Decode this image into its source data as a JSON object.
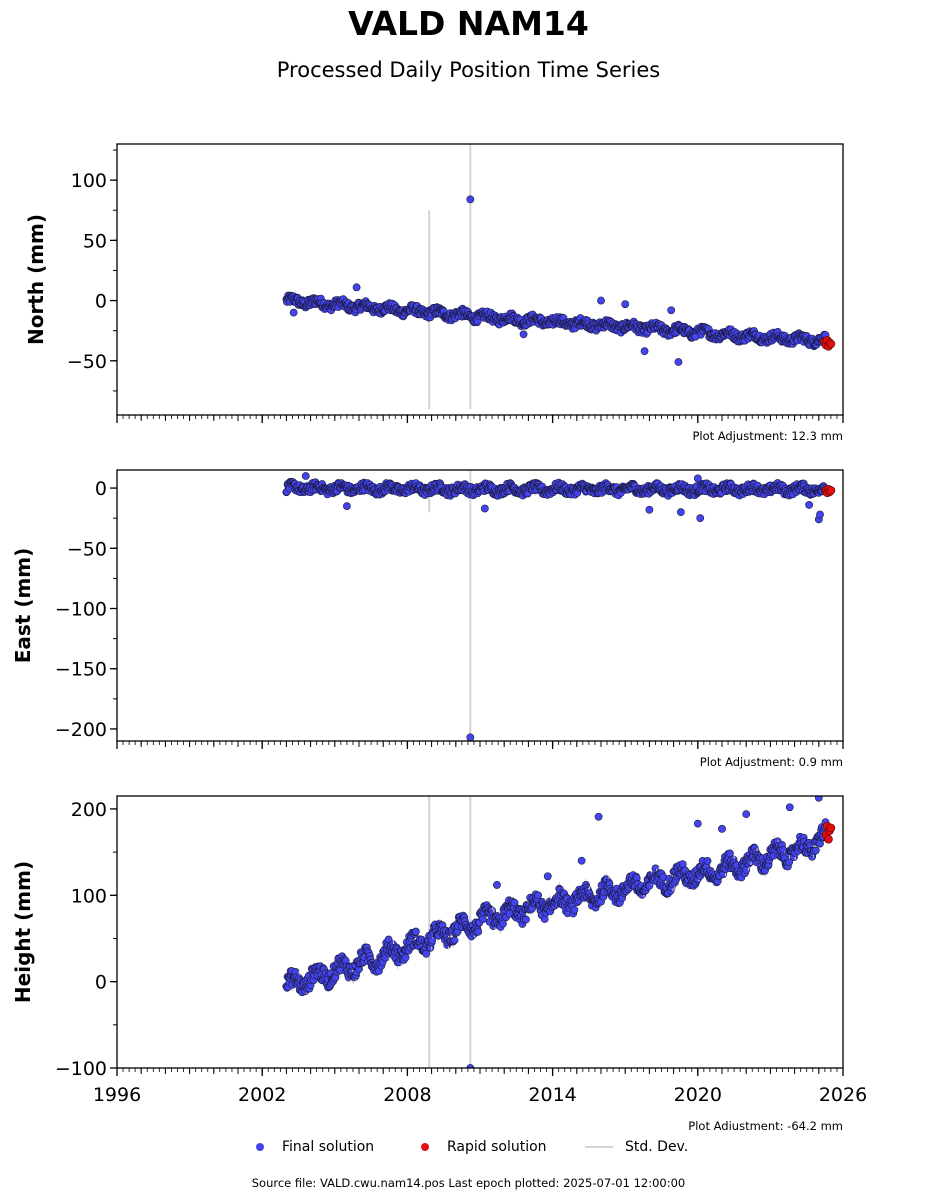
{
  "title": "VALD NAM14",
  "subtitle": "Processed Daily Position Time Series",
  "legend": {
    "final": "Final solution",
    "rapid": "Rapid solution",
    "std": "Std. Dev."
  },
  "source": "Source file: VALD.cwu.nam14.pos  Last epoch plotted: 2025-07-01 12:00:00",
  "colors": {
    "final": "#4444ee",
    "final_edge": "#1a1a3a",
    "rapid": "#e01010",
    "std": "#d3d3d3"
  },
  "chart_data": [
    {
      "type": "scatter",
      "ylabel": "North (mm)",
      "adjustment": "Plot Adjustment: 12.3 mm",
      "xlim": [
        1996,
        2026
      ],
      "ylim": [
        -95,
        130
      ],
      "yticks": [
        100,
        50,
        0,
        -50
      ],
      "ytick_labels": [
        "100",
        "50",
        "0",
        "−50"
      ],
      "xticks": [
        1996,
        2002,
        2008,
        2014,
        2020,
        2026
      ],
      "xtick_labels": [],
      "trend": [
        [
          2003.0,
          0
        ],
        [
          2006.0,
          -5
        ],
        [
          2009.0,
          -10
        ],
        [
          2012.0,
          -15
        ],
        [
          2015.0,
          -19
        ],
        [
          2018.0,
          -23
        ],
        [
          2021.0,
          -28
        ],
        [
          2024.0,
          -32
        ],
        [
          2025.3,
          -33
        ]
      ],
      "outliers": [
        [
          2010.6,
          84
        ],
        [
          2003.3,
          -10
        ],
        [
          2005.9,
          11
        ],
        [
          2016.0,
          0
        ],
        [
          2017.0,
          -3
        ],
        [
          2018.9,
          -8
        ],
        [
          2019.2,
          -51
        ],
        [
          2017.8,
          -42
        ],
        [
          2019.9,
          -30
        ],
        [
          2012.8,
          -28
        ]
      ],
      "rapid": [
        [
          2025.25,
          -34
        ],
        [
          2025.3,
          -37
        ],
        [
          2025.35,
          -33
        ],
        [
          2025.4,
          -38
        ],
        [
          2025.45,
          -35
        ],
        [
          2025.5,
          -36
        ]
      ],
      "std_lines": [
        [
          2008.9,
          -90,
          75
        ],
        [
          2010.6,
          -90,
          130
        ]
      ]
    },
    {
      "type": "scatter",
      "ylabel": "East (mm)",
      "adjustment": "Plot Adjustment: 0.9 mm",
      "xlim": [
        1996,
        2026
      ],
      "ylim": [
        -210,
        15
      ],
      "yticks": [
        0,
        -50,
        -100,
        -150,
        -200
      ],
      "ytick_labels": [
        "0",
        "−50",
        "−100",
        "−150",
        "−200"
      ],
      "xticks": [
        1996,
        2002,
        2008,
        2014,
        2020,
        2026
      ],
      "xtick_labels": [],
      "trend": [
        [
          2003.0,
          0
        ],
        [
          2010.0,
          -1
        ],
        [
          2015.0,
          -1
        ],
        [
          2020.0,
          -1
        ],
        [
          2025.3,
          -1
        ]
      ],
      "outliers": [
        [
          2010.6,
          -207
        ],
        [
          2003.8,
          10
        ],
        [
          2005.5,
          -15
        ],
        [
          2011.2,
          -17
        ],
        [
          2018.0,
          -18
        ],
        [
          2019.3,
          -20
        ],
        [
          2020.1,
          -25
        ],
        [
          2025.0,
          -26
        ],
        [
          2025.05,
          -22
        ],
        [
          2020.0,
          8
        ],
        [
          2024.6,
          -14
        ]
      ],
      "rapid": [
        [
          2025.3,
          -2
        ],
        [
          2025.35,
          -4
        ],
        [
          2025.4,
          -1
        ],
        [
          2025.45,
          -3
        ],
        [
          2025.5,
          -2
        ]
      ],
      "std_lines": [
        [
          2010.6,
          -207,
          15
        ],
        [
          2008.9,
          -20,
          5
        ]
      ]
    },
    {
      "type": "scatter",
      "ylabel": "Height (mm)",
      "adjustment": "Plot Adjustment: -64.2 mm",
      "xlim": [
        1996,
        2026
      ],
      "ylim": [
        -100,
        215
      ],
      "yticks": [
        200,
        100,
        0,
        -100
      ],
      "ytick_labels": [
        "200",
        "100",
        "0",
        "−100"
      ],
      "xticks": [
        1996,
        2002,
        2008,
        2014,
        2020,
        2026
      ],
      "xtick_labels": [
        "1996",
        "2002",
        "2008",
        "2014",
        "2020",
        "2026"
      ],
      "trend": [
        [
          2003.0,
          -5
        ],
        [
          2005.0,
          12
        ],
        [
          2007.0,
          30
        ],
        [
          2009.0,
          50
        ],
        [
          2011.0,
          70
        ],
        [
          2013.0,
          85
        ],
        [
          2015.0,
          95
        ],
        [
          2017.0,
          108
        ],
        [
          2019.0,
          120
        ],
        [
          2021.0,
          130
        ],
        [
          2023.0,
          145
        ],
        [
          2024.5,
          155
        ],
        [
          2025.3,
          170
        ]
      ],
      "outliers": [
        [
          2010.6,
          -100
        ],
        [
          2015.9,
          191
        ],
        [
          2022.0,
          194
        ],
        [
          2023.8,
          202
        ],
        [
          2025.0,
          213
        ],
        [
          2020.0,
          183
        ],
        [
          2021.0,
          177
        ],
        [
          2015.2,
          140
        ],
        [
          2011.7,
          112
        ],
        [
          2013.8,
          122
        ]
      ],
      "rapid": [
        [
          2025.3,
          170
        ],
        [
          2025.35,
          180
        ],
        [
          2025.4,
          165
        ],
        [
          2025.45,
          175
        ],
        [
          2025.5,
          178
        ]
      ],
      "std_lines": [
        [
          2008.9,
          -100,
          215
        ],
        [
          2010.6,
          -100,
          215
        ]
      ]
    }
  ]
}
